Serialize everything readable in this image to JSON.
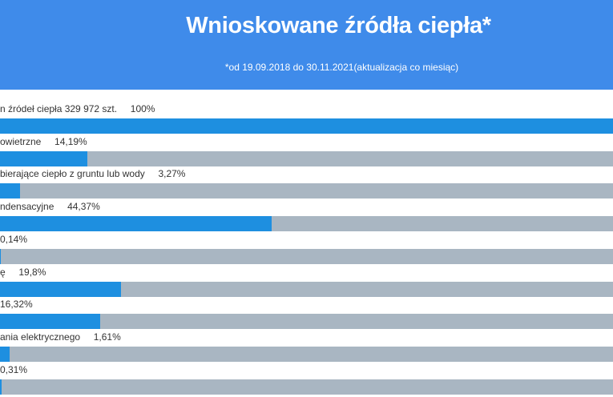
{
  "header": {
    "title": "Wnioskowane źródła ciepła*",
    "subtitle": "*od 19.09.2018 do 30.11.2021(aktualizacja co miesiąc)"
  },
  "colors": {
    "header_bg": "#3f8bea",
    "bar_fill": "#1e8fe0",
    "bar_track": "#a9b6c2"
  },
  "chart_data": {
    "type": "bar",
    "orientation": "horizontal",
    "title": "Wnioskowane źródła ciepła*",
    "subtitle": "*od 19.09.2018 do 30.11.2021(aktualizacja co miesiąc)",
    "value_unit": "%",
    "xlim": [
      0,
      100
    ],
    "grid": false,
    "legend": "none",
    "rows": [
      {
        "label": "n źródeł ciepła 329 972 szt.",
        "value_label": "100%",
        "value": 100
      },
      {
        "label": "owietrzne",
        "value_label": "14,19%",
        "value": 14.19
      },
      {
        "label": "bierające ciepło z gruntu lub wody",
        "value_label": "3,27%",
        "value": 3.27
      },
      {
        "label": "ndensacyjne",
        "value_label": "44,37%",
        "value": 44.37
      },
      {
        "label": "",
        "value_label": "0,14%",
        "value": 0.14
      },
      {
        "label": "ę",
        "value_label": "19,8%",
        "value": 19.8
      },
      {
        "label": "",
        "value_label": "16,32%",
        "value": 16.32
      },
      {
        "label": "ania elektrycznego",
        "value_label": "1,61%",
        "value": 1.61
      },
      {
        "label": "",
        "value_label": "0,31%",
        "value": 0.31
      }
    ]
  }
}
